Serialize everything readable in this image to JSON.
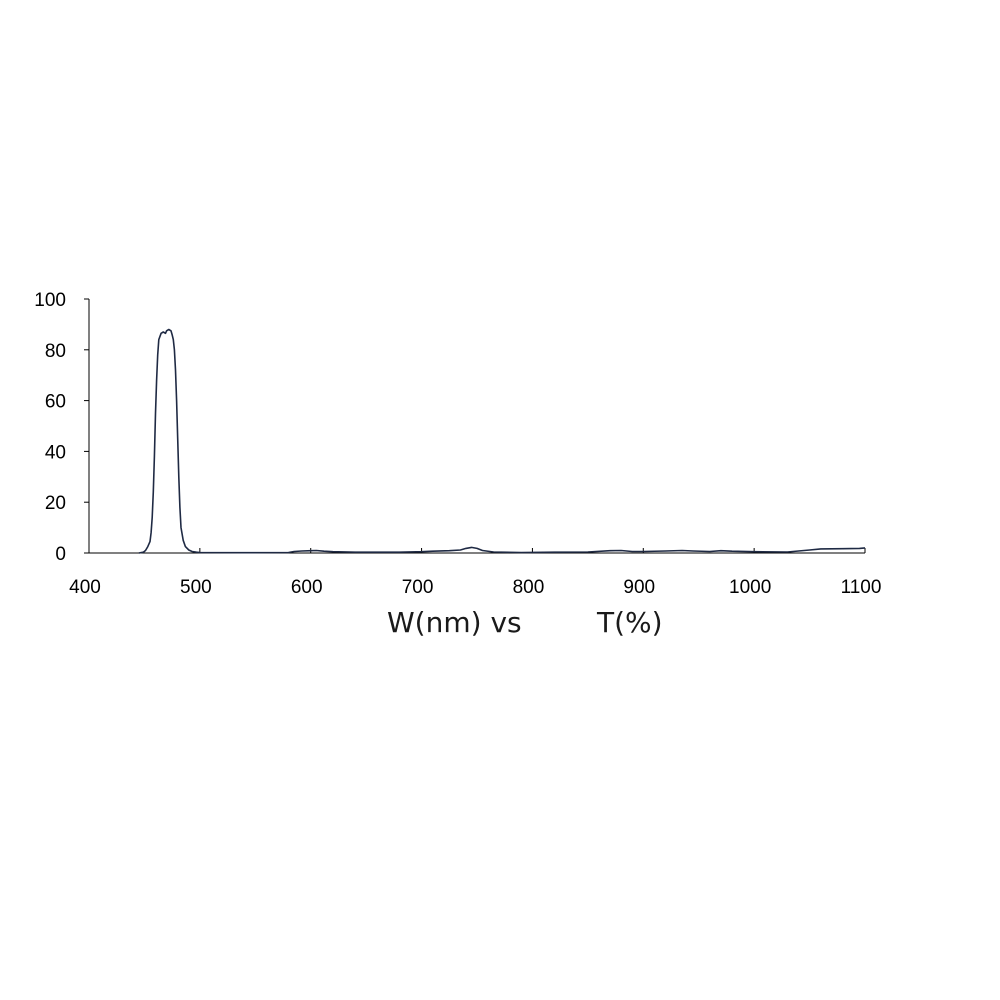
{
  "chart_data": {
    "type": "line",
    "title": "",
    "xlabel_left": "W(nm) vs",
    "xlabel_right": "T(%)",
    "ylabel": "",
    "xlim": [
      400,
      1100
    ],
    "ylim": [
      0,
      100
    ],
    "xticks": [
      400,
      500,
      600,
      700,
      800,
      900,
      1000,
      1100
    ],
    "yticks": [
      0,
      20,
      40,
      60,
      80,
      100
    ],
    "grid": false,
    "legend": "none",
    "series": [
      {
        "color": "#1f2a44",
        "points": [
          [
            445,
            0
          ],
          [
            449,
            0.3
          ],
          [
            451,
            1.0
          ],
          [
            453,
            2.5
          ],
          [
            455,
            4.5
          ],
          [
            456,
            8
          ],
          [
            457,
            14
          ],
          [
            458,
            24
          ],
          [
            459,
            38
          ],
          [
            460,
            55
          ],
          [
            461,
            68
          ],
          [
            462,
            78
          ],
          [
            463,
            84
          ],
          [
            465,
            86.5
          ],
          [
            467,
            87
          ],
          [
            469,
            86.5
          ],
          [
            470,
            87.5
          ],
          [
            472,
            88
          ],
          [
            474,
            87.5
          ],
          [
            475,
            86
          ],
          [
            476,
            84
          ],
          [
            477,
            80
          ],
          [
            478,
            72
          ],
          [
            479,
            60
          ],
          [
            480,
            45
          ],
          [
            481,
            30
          ],
          [
            482,
            18
          ],
          [
            483,
            10
          ],
          [
            485,
            5
          ],
          [
            487,
            2.5
          ],
          [
            490,
            1.2
          ],
          [
            493,
            0.6
          ],
          [
            497,
            0.3
          ],
          [
            500,
            0.2
          ],
          [
            540,
            0.1
          ],
          [
            580,
            0.2
          ],
          [
            585,
            0.6
          ],
          [
            592,
            0.8
          ],
          [
            600,
            0.9
          ],
          [
            605,
            1.0
          ],
          [
            612,
            0.7
          ],
          [
            620,
            0.5
          ],
          [
            640,
            0.3
          ],
          [
            660,
            0.3
          ],
          [
            680,
            0.3
          ],
          [
            700,
            0.5
          ],
          [
            710,
            0.7
          ],
          [
            725,
            0.9
          ],
          [
            735,
            1.2
          ],
          [
            740,
            1.8
          ],
          [
            745,
            2.2
          ],
          [
            750,
            1.8
          ],
          [
            755,
            1.0
          ],
          [
            765,
            0.4
          ],
          [
            790,
            0.2
          ],
          [
            820,
            0.3
          ],
          [
            850,
            0.4
          ],
          [
            870,
            0.9
          ],
          [
            880,
            1.0
          ],
          [
            890,
            0.6
          ],
          [
            900,
            0.6
          ],
          [
            920,
            0.8
          ],
          [
            935,
            1.0
          ],
          [
            945,
            0.8
          ],
          [
            960,
            0.6
          ],
          [
            970,
            0.9
          ],
          [
            980,
            0.7
          ],
          [
            1000,
            0.5
          ],
          [
            1030,
            0.4
          ],
          [
            1040,
            0.8
          ],
          [
            1050,
            1.2
          ],
          [
            1060,
            1.6
          ],
          [
            1080,
            1.7
          ],
          [
            1095,
            1.8
          ],
          [
            1100,
            2.0
          ]
        ]
      }
    ]
  }
}
